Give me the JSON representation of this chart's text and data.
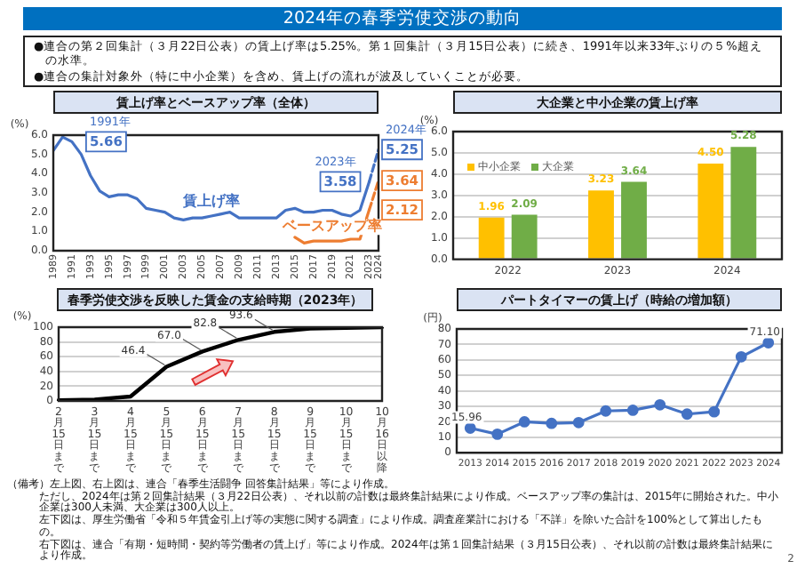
{
  "chart_data": [
    {
      "type": "other",
      "title": "2024年の春季労使交渉の動向",
      "annotations": [
        "●連合の第２回集計（３月22日公表）の賃上げ率は5.25%。第１回集計（３月15日公表）に続き、1991年以来33年ぶりの５%超えの水準。",
        "●連合の集計対象外（特に中小企業）を含め、賃上げの流れが波及していくことが必要。"
      ]
    },
    {
      "type": "line",
      "title": "賃上げ率とベースアップ率（全体）",
      "ylabel": "(%)",
      "xlim": [
        1989,
        2024
      ],
      "xticks": [
        1989,
        1991,
        1993,
        1995,
        1997,
        1999,
        2001,
        2003,
        2005,
        2007,
        2009,
        2011,
        2013,
        2015,
        2017,
        2019,
        2021,
        2023,
        2024
      ],
      "ylim": [
        0,
        6
      ],
      "yticks": [
        {
          "value": 0,
          "label": "0.0"
        },
        {
          "value": 1,
          "label": "1.0"
        },
        {
          "value": 2,
          "label": "2.0"
        },
        {
          "value": 3,
          "label": "3.0"
        },
        {
          "value": 4,
          "label": "4.0"
        },
        {
          "value": 5,
          "label": "5.0"
        },
        {
          "value": 6,
          "label": "6.0"
        }
      ],
      "marker": "none",
      "line_style": "solid",
      "series": [
        {
          "name": "賃上げ率",
          "color": "#4472c4",
          "x": [
            1989,
            1990,
            1991,
            1992,
            1993,
            1994,
            1995,
            1996,
            1997,
            1998,
            1999,
            2000,
            2001,
            2002,
            2003,
            2004,
            2005,
            2006,
            2007,
            2008,
            2009,
            2010,
            2011,
            2012,
            2013,
            2014,
            2015,
            2016,
            2017,
            2018,
            2019,
            2020,
            2021,
            2022,
            2023
          ],
          "values": [
            5.2,
            5.9,
            5.66,
            5.0,
            3.9,
            3.1,
            2.8,
            2.9,
            2.9,
            2.7,
            2.2,
            2.1,
            2.0,
            1.7,
            1.6,
            1.7,
            1.7,
            1.8,
            1.9,
            2.0,
            1.7,
            1.7,
            1.7,
            1.7,
            1.7,
            2.1,
            2.2,
            2.0,
            2.0,
            2.1,
            2.1,
            1.9,
            1.8,
            2.1,
            3.58
          ]
        },
        {
          "color": "#4472c4",
          "x": [
            2023,
            2024
          ],
          "values": [
            3.58,
            5.25
          ],
          "line_style": "dashed"
        },
        {
          "name": "ベースアップ率",
          "color": "#ed7d31",
          "x": [
            2015,
            2016,
            2017,
            2018,
            2019,
            2020,
            2021,
            2022,
            2023
          ],
          "values": [
            0.7,
            0.4,
            0.5,
            0.5,
            0.5,
            0.5,
            0.6,
            0.6,
            2.12
          ]
        },
        {
          "color": "#ed7d31",
          "x": [
            2023,
            2024
          ],
          "values": [
            2.12,
            3.64
          ],
          "line_style": "dashed"
        }
      ],
      "annotations": [
        {
          "text": "1991年",
          "x": 1991,
          "y": 5.66
        },
        {
          "text": "5.66",
          "x": 1991,
          "y": 5.66
        },
        {
          "text": "2023年",
          "x": 2023,
          "y": 3.58
        },
        {
          "text": "3.58",
          "x": 2023,
          "y": 3.58
        },
        {
          "text": "2024年",
          "x": 2024,
          "y": 5.25
        },
        {
          "text": "5.25",
          "x": 2024,
          "y": 5.25
        },
        {
          "text": "3.64",
          "x": 2024,
          "y": 3.64
        },
        {
          "text": "2.12",
          "x": 2023,
          "y": 2.12
        }
      ]
    },
    {
      "type": "bar",
      "title": "大企業と中小企業の賃上げ率",
      "ylabel": "(%)",
      "categories": [
        "2022",
        "2023",
        "2024"
      ],
      "ylim": [
        0,
        6
      ],
      "yticks": [
        {
          "value": 0,
          "label": "0.0"
        },
        {
          "value": 1,
          "label": "1.0"
        },
        {
          "value": 2,
          "label": "2.0"
        },
        {
          "value": 3,
          "label": "3.0"
        },
        {
          "value": 4,
          "label": "4.0"
        },
        {
          "value": 5,
          "label": "5.0"
        },
        {
          "value": 6,
          "label": "6.0"
        }
      ],
      "grid": "y",
      "legend": "top left",
      "series": [
        {
          "name": "中小企業",
          "color": "#ffc000",
          "values": [
            1.96,
            3.23,
            4.5
          ],
          "value_labels": [
            "1.96",
            "3.23",
            "4.50"
          ]
        },
        {
          "name": "大企業",
          "color": "#70ad47",
          "values": [
            2.09,
            3.64,
            5.28
          ],
          "value_labels": [
            "2.09",
            "3.64",
            "5.28"
          ]
        }
      ]
    },
    {
      "type": "line",
      "title": "春季労使交渉を反映した賃金の支給時期（2023年）",
      "ylabel": "(%)",
      "categories": [
        "2月15日まで",
        "3月15日まで",
        "4月15日まで",
        "5月15日まで",
        "6月15日まで",
        "7月15日まで",
        "8月15日まで",
        "9月15日まで",
        "10月15日まで",
        "10月16日以降"
      ],
      "ylim": [
        0,
        100
      ],
      "yticks": [
        0,
        20,
        40,
        60,
        80,
        100
      ],
      "grid": "y",
      "marker": "none",
      "color": "#000000",
      "values": [
        1,
        2,
        6,
        46.4,
        67.0,
        82.8,
        93.6,
        98,
        99,
        100
      ],
      "value_labels": [
        null,
        null,
        null,
        "46.4",
        "67.0",
        "82.8",
        "93.6",
        null,
        null,
        null
      ]
    },
    {
      "type": "line",
      "title": "パートタイマーの賃上げ（時給の増加額）",
      "ylabel": "(円)",
      "categories": [
        "2013",
        "2014",
        "2015",
        "2016",
        "2017",
        "2018",
        "2019",
        "2020",
        "2021",
        "2022",
        "2023",
        "2024"
      ],
      "ylim": [
        0,
        80
      ],
      "yticks": [
        0,
        10,
        20,
        30,
        40,
        50,
        60,
        70,
        80
      ],
      "grid": "y",
      "marker": "circle",
      "color": "#4472c4",
      "values": [
        15.96,
        12,
        20,
        19,
        19.5,
        27,
        27.5,
        31,
        25,
        26.5,
        62,
        71.1
      ],
      "value_labels": [
        "15.96",
        null,
        null,
        null,
        null,
        null,
        null,
        null,
        null,
        null,
        null,
        "71.10"
      ]
    },
    {
      "type": "other",
      "annotations": [
        "（備考）左上図、右上図は、連合「春季生活闘争 回答集計結果」等により作成。",
        "ただし、2024年は第２回集計結果（３月22日公表）、それ以前の計数は最終集計結果により作成。ベースアップ率の集計は、2015年に開始された。中小企業は300人未満、大企業は300人以上。",
        "左下図は、厚生労働省「令和５年賃金引上げ等の実態に関する調査」により作成。調査産業計における「不詳」を除いた合計を100%として算出したもの。",
        "右下図は、連合「有期・短時間・契約等労働者の賃上げ」等により作成。2024年は第１回集計結果（３月15日公表）、それ以前の計数は最終集計結果により作成。",
        "2"
      ]
    }
  ]
}
